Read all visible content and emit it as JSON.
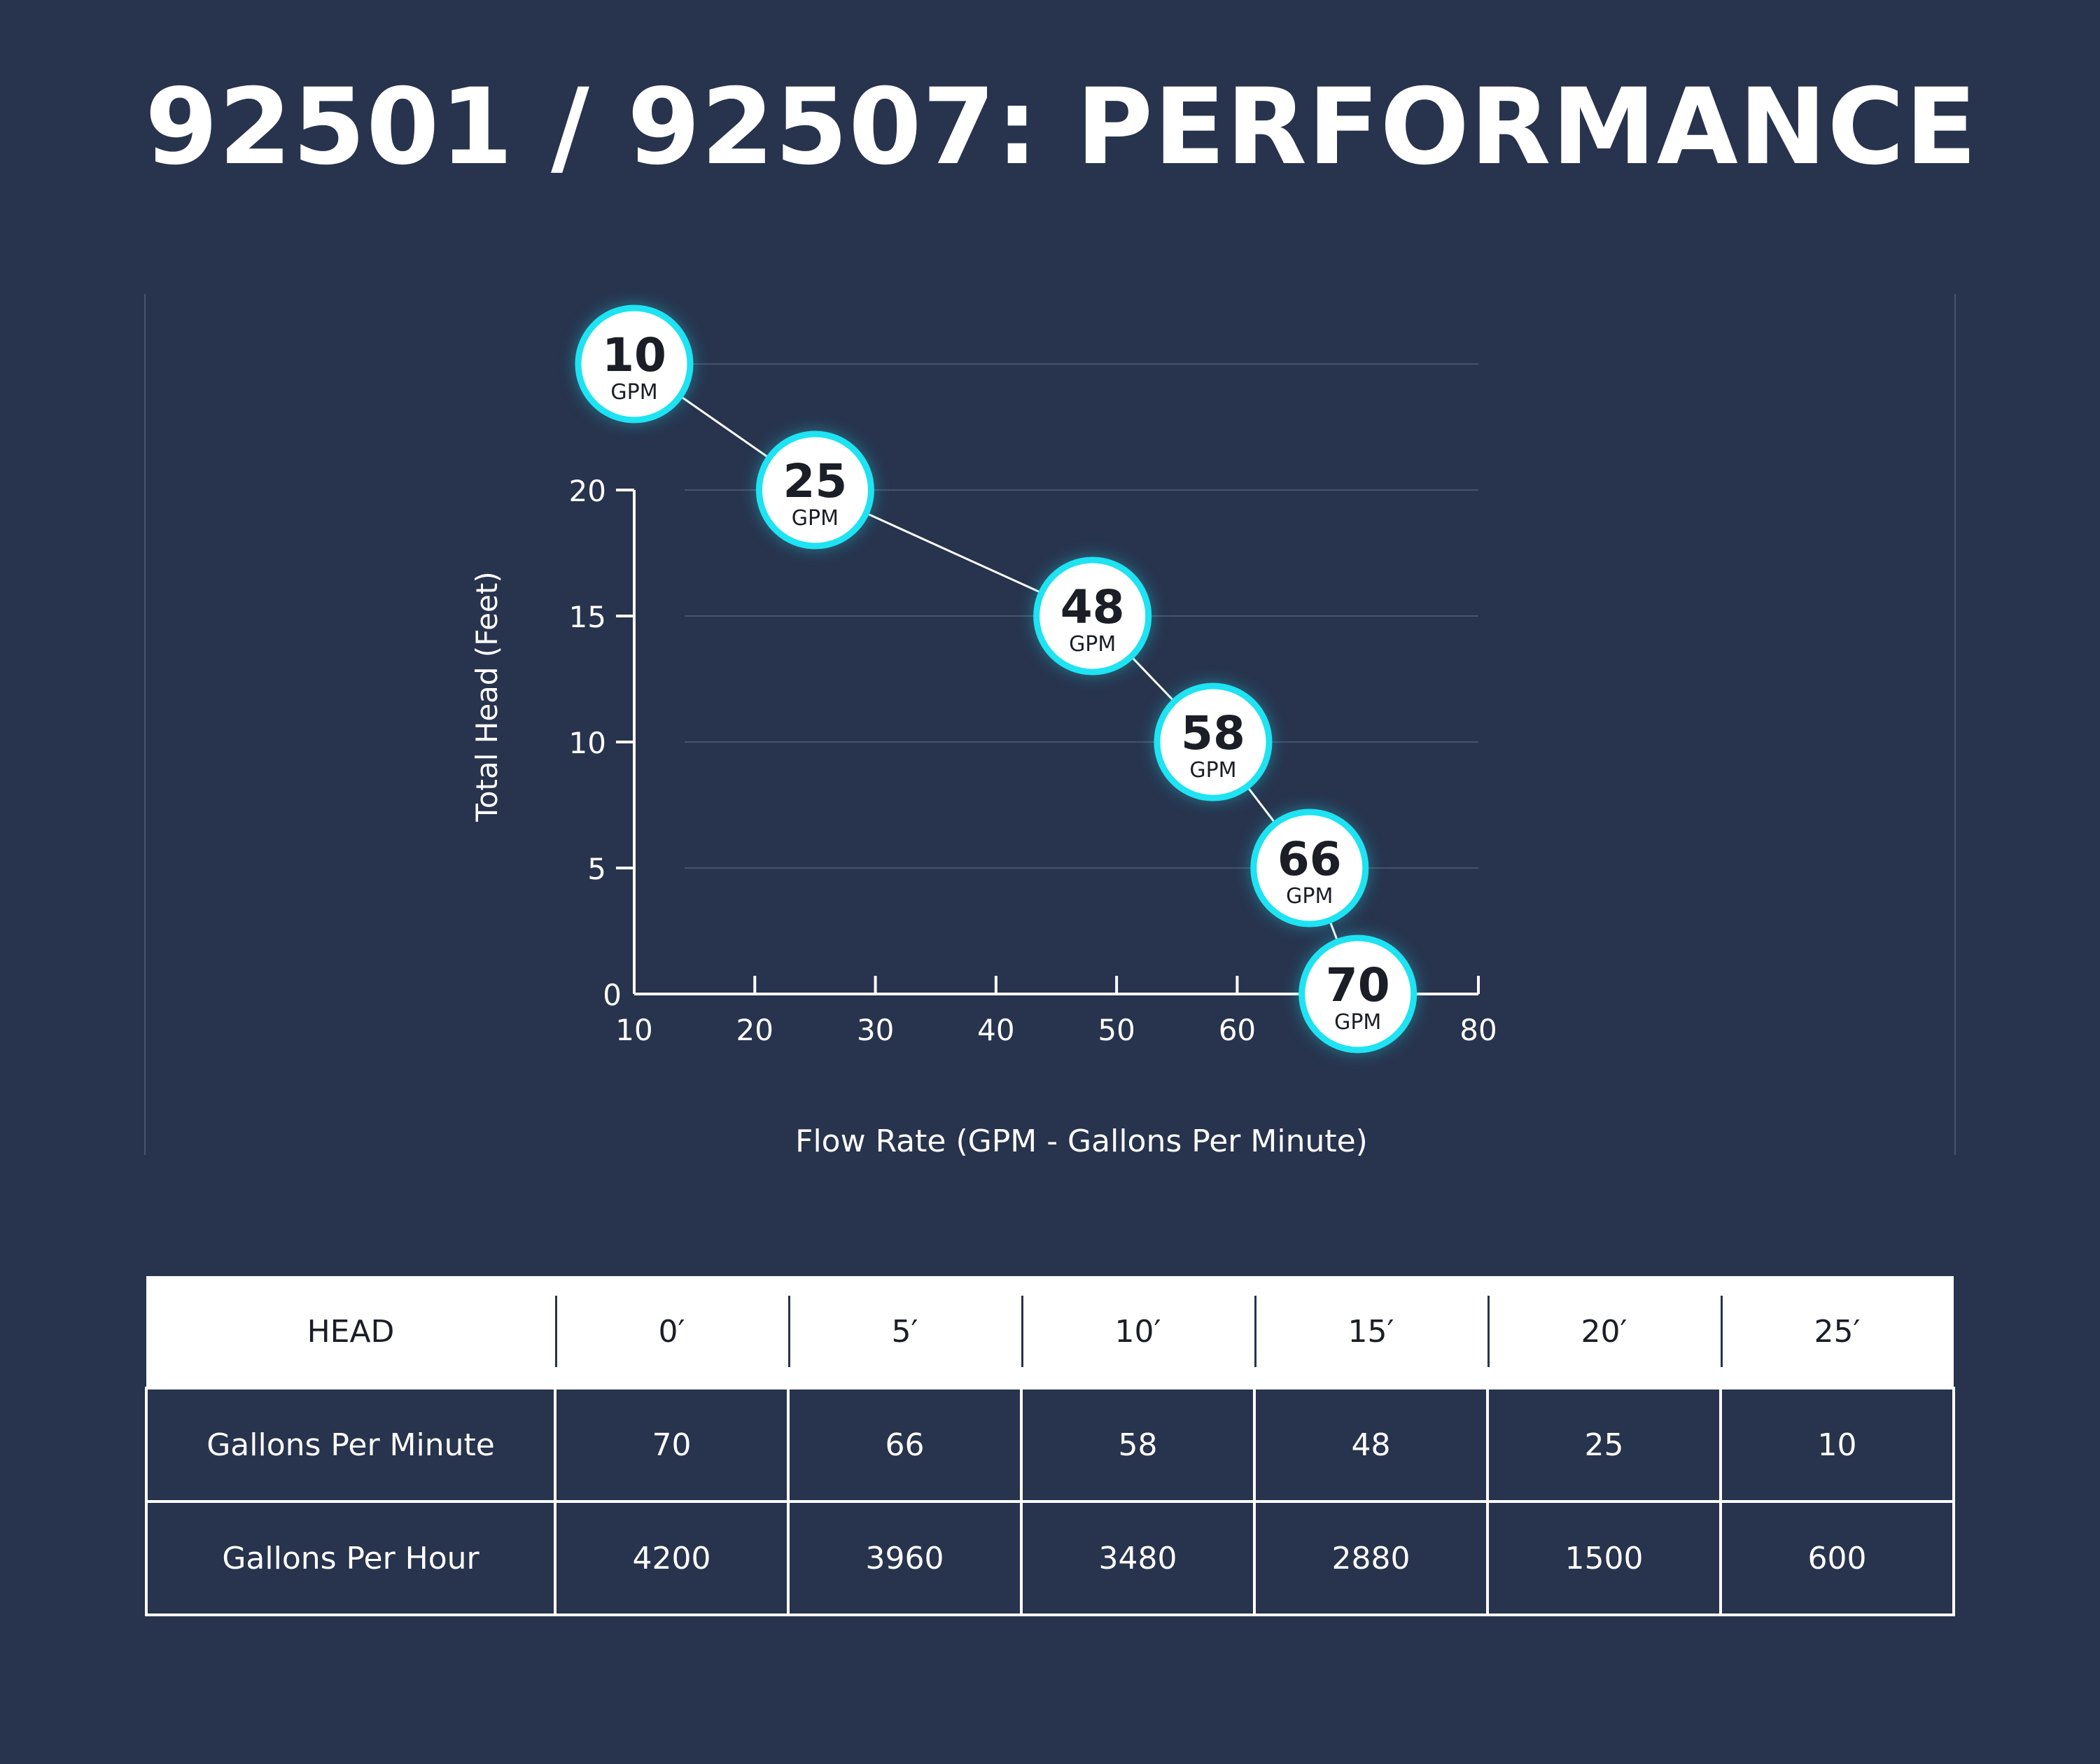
{
  "page": {
    "title": "92501 / 92507: PERFORMANCE"
  },
  "chart_data": {
    "type": "line",
    "xlabel": "Flow Rate (GPM - Gallons Per Minute)",
    "ylabel": "Total Head (Feet)",
    "xlim": [
      10,
      80
    ],
    "ylim": [
      0,
      25
    ],
    "x_ticks": [
      "10",
      "20",
      "30",
      "40",
      "50",
      "60",
      "70",
      "80"
    ],
    "y_ticks": [
      "0",
      "5",
      "10",
      "15",
      "20"
    ],
    "grid": true,
    "series": [
      {
        "points": [
          {
            "x": 10,
            "y": 25,
            "value": "10",
            "unit": "GPM"
          },
          {
            "x": 25,
            "y": 20,
            "value": "25",
            "unit": "GPM"
          },
          {
            "x": 48,
            "y": 15,
            "value": "48",
            "unit": "GPM"
          },
          {
            "x": 58,
            "y": 10,
            "value": "58",
            "unit": "GPM"
          },
          {
            "x": 66,
            "y": 5,
            "value": "66",
            "unit": "GPM"
          },
          {
            "x": 70,
            "y": 0,
            "value": "70",
            "unit": "GPM"
          }
        ]
      }
    ],
    "colors": {
      "background": "#28334d",
      "marker_fill": "#ffffff",
      "marker_ring": "#1ee3f2",
      "line": "#ffffff",
      "grid": "#47526b"
    }
  },
  "table": {
    "header": [
      "HEAD",
      "0′",
      "5′",
      "10′",
      "15′",
      "20′",
      "25′"
    ],
    "rows": [
      {
        "label": "Gallons Per Minute",
        "values": [
          "70",
          "66",
          "58",
          "48",
          "25",
          "10"
        ]
      },
      {
        "label": "Gallons Per Hour",
        "values": [
          "4200",
          "3960",
          "3480",
          "2880",
          "1500",
          "600"
        ]
      }
    ]
  }
}
